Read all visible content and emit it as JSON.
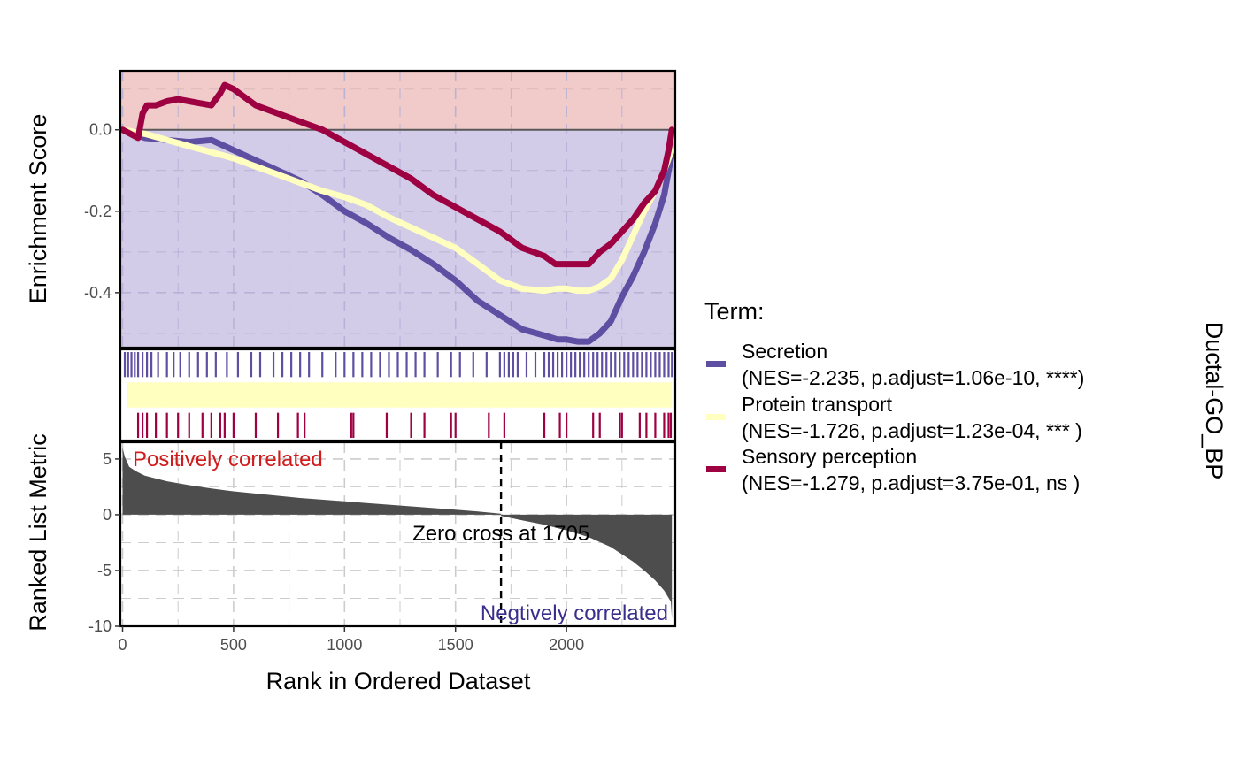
{
  "chart_data": {
    "type": "line",
    "facet_label": "Ductal-GO_BP",
    "legend": {
      "title": "Term:",
      "items": [
        {
          "name": "Secretion",
          "stats": "(NES=-2.235, p.adjust=1.06e-10, ****)",
          "color": "#5E4FA2"
        },
        {
          "name": "Protein transport",
          "stats": "(NES=-1.726, p.adjust=1.23e-04, *** )",
          "color": "#FFFFBF"
        },
        {
          "name": "Sensory perception",
          "stats": "(NES=-1.279, p.adjust=3.75e-01, ns  )",
          "color": "#9E0142"
        }
      ]
    },
    "xlabel": "Rank in Ordered Dataset",
    "xlim": [
      -10,
      2490
    ],
    "xticks": [
      0,
      500,
      1000,
      1500,
      2000
    ],
    "es_panel": {
      "ylabel": "Enrichment Score",
      "ylim": [
        -0.535,
        0.145
      ],
      "yticks": [
        0.0,
        -0.2,
        -0.4
      ],
      "ytick_labels": [
        "0.0",
        "-0.2",
        "-0.4"
      ],
      "positive_fill": "#F1CACA",
      "negative_fill": "#D3CCE9",
      "series": [
        {
          "name": "Secretion",
          "color": "#5E4FA2",
          "x": [
            0,
            100,
            200,
            300,
            400,
            500,
            600,
            700,
            800,
            900,
            1000,
            1100,
            1200,
            1300,
            1400,
            1500,
            1600,
            1700,
            1800,
            1900,
            1960,
            2000,
            2050,
            2100,
            2150,
            2200,
            2250,
            2300,
            2350,
            2400,
            2440,
            2460,
            2475
          ],
          "y": [
            0.0,
            -0.02,
            -0.025,
            -0.03,
            -0.025,
            -0.05,
            -0.075,
            -0.1,
            -0.125,
            -0.16,
            -0.2,
            -0.23,
            -0.265,
            -0.295,
            -0.33,
            -0.37,
            -0.42,
            -0.455,
            -0.49,
            -0.505,
            -0.515,
            -0.515,
            -0.52,
            -0.52,
            -0.5,
            -0.47,
            -0.41,
            -0.36,
            -0.3,
            -0.23,
            -0.16,
            -0.1,
            -0.06
          ]
        },
        {
          "name": "Protein transport",
          "color": "#FFFFBF",
          "x": [
            0,
            100,
            200,
            300,
            400,
            500,
            600,
            700,
            800,
            900,
            1000,
            1100,
            1200,
            1300,
            1400,
            1500,
            1600,
            1700,
            1800,
            1900,
            1960,
            2000,
            2050,
            2100,
            2150,
            2200,
            2250,
            2300,
            2350,
            2400,
            2440,
            2460,
            2475
          ],
          "y": [
            0.0,
            -0.01,
            -0.025,
            -0.04,
            -0.055,
            -0.07,
            -0.09,
            -0.11,
            -0.13,
            -0.15,
            -0.165,
            -0.185,
            -0.215,
            -0.24,
            -0.265,
            -0.29,
            -0.33,
            -0.37,
            -0.39,
            -0.395,
            -0.39,
            -0.39,
            -0.395,
            -0.395,
            -0.385,
            -0.365,
            -0.32,
            -0.26,
            -0.2,
            -0.15,
            -0.1,
            -0.07,
            -0.05
          ]
        },
        {
          "name": "Sensory perception",
          "color": "#9E0142",
          "x": [
            0,
            70,
            90,
            110,
            150,
            200,
            250,
            300,
            350,
            400,
            440,
            460,
            480,
            500,
            600,
            700,
            800,
            900,
            1000,
            1100,
            1200,
            1300,
            1400,
            1500,
            1600,
            1700,
            1800,
            1900,
            1950,
            2000,
            2050,
            2100,
            2150,
            2200,
            2250,
            2300,
            2350,
            2400,
            2440,
            2460,
            2475
          ],
          "y": [
            0.0,
            -0.02,
            0.04,
            0.06,
            0.06,
            0.07,
            0.075,
            0.07,
            0.065,
            0.06,
            0.09,
            0.11,
            0.105,
            0.1,
            0.06,
            0.04,
            0.02,
            0.0,
            -0.03,
            -0.06,
            -0.09,
            -0.12,
            -0.16,
            -0.19,
            -0.22,
            -0.25,
            -0.29,
            -0.31,
            -0.33,
            -0.33,
            -0.33,
            -0.33,
            -0.3,
            -0.28,
            -0.25,
            -0.22,
            -0.18,
            -0.15,
            -0.1,
            -0.05,
            0.0
          ]
        }
      ]
    },
    "hits_panel": {
      "rows": [
        {
          "name": "Secretion",
          "color": "#5E4FA2",
          "hits": [
            10,
            25,
            40,
            55,
            70,
            90,
            110,
            130,
            160,
            200,
            230,
            260,
            300,
            340,
            380,
            420,
            470,
            520,
            580,
            620,
            680,
            720,
            760,
            800,
            840,
            900,
            960,
            1000,
            1040,
            1080,
            1120,
            1160,
            1200,
            1240,
            1280,
            1320,
            1360,
            1420,
            1480,
            1520,
            1580,
            1640,
            1700,
            1720,
            1740,
            1760,
            1780,
            1820,
            1860,
            1900,
            1920,
            1940,
            1960,
            1980,
            2000,
            2020,
            2040,
            2060,
            2080,
            2100,
            2120,
            2140,
            2160,
            2180,
            2200,
            2220,
            2240,
            2260,
            2280,
            2300,
            2320,
            2340,
            2360,
            2380,
            2400,
            2420,
            2440,
            2460,
            2475
          ]
        },
        {
          "name": "Protein transport",
          "color": "#FFFFBF",
          "hits": [
            30,
            50,
            70,
            90,
            110,
            130,
            150,
            170,
            190,
            210,
            230,
            250,
            270,
            290,
            310,
            330,
            350,
            370,
            390,
            410,
            430,
            450,
            470,
            490,
            510,
            530,
            550,
            570,
            590,
            610,
            630,
            650,
            670,
            690,
            710,
            730,
            750,
            770,
            790,
            810,
            830,
            850,
            870,
            890,
            910,
            930,
            950,
            970,
            990,
            1010,
            1030,
            1050,
            1070,
            1090,
            1110,
            1130,
            1150,
            1170,
            1190,
            1210,
            1230,
            1250,
            1270,
            1290,
            1310,
            1330,
            1350,
            1370,
            1390,
            1410,
            1430,
            1450,
            1470,
            1490,
            1510,
            1530,
            1550,
            1570,
            1590,
            1610,
            1630,
            1650,
            1670,
            1690,
            1710,
            1730,
            1750,
            1770,
            1790,
            1810,
            1830,
            1850,
            1870,
            1890,
            1910,
            1930,
            1950,
            1970,
            1990,
            2010,
            2030,
            2050,
            2070,
            2090,
            2110,
            2130,
            2150,
            2170,
            2190,
            2210,
            2230,
            2250,
            2270,
            2290,
            2310,
            2330,
            2350,
            2370,
            2390,
            2410,
            2430,
            2450,
            2470
          ]
        },
        {
          "name": "Sensory perception",
          "color": "#9E0142",
          "hits": [
            70,
            90,
            110,
            150,
            200,
            250,
            300,
            360,
            400,
            440,
            460,
            500,
            600,
            700,
            790,
            820,
            1030,
            1040,
            1190,
            1300,
            1360,
            1480,
            1500,
            1650,
            1720,
            1900,
            1970,
            2000,
            2120,
            2150,
            2240,
            2250,
            2330,
            2360,
            2400,
            2440,
            2460,
            2470
          ]
        }
      ]
    },
    "metric_panel": {
      "ylabel": "Ranked List Metric",
      "ylim": [
        -10,
        6.5
      ],
      "yticks": [
        5,
        0,
        -5,
        -10
      ],
      "ytick_labels": [
        "5",
        "0",
        "-5",
        "-10"
      ],
      "bar_color": "#4D4D4D",
      "profile_x": [
        0,
        10,
        30,
        60,
        100,
        200,
        300,
        400,
        500,
        600,
        700,
        800,
        900,
        1000,
        1100,
        1200,
        1300,
        1400,
        1500,
        1600,
        1704,
        1705,
        1800,
        1900,
        2000,
        2100,
        2200,
        2300,
        2350,
        2400,
        2440,
        2470,
        2475
      ],
      "profile_y": [
        6.0,
        5.2,
        4.3,
        3.9,
        3.5,
        3.0,
        2.65,
        2.35,
        2.1,
        1.9,
        1.7,
        1.5,
        1.35,
        1.2,
        1.05,
        0.9,
        0.75,
        0.6,
        0.45,
        0.3,
        0.1,
        -0.1,
        -0.5,
        -0.9,
        -1.4,
        -2.0,
        -2.9,
        -4.2,
        -5.0,
        -5.9,
        -6.8,
        -7.8,
        -9.3
      ],
      "zero_cross": 1705,
      "zero_cross_label": "Zero cross at 1705",
      "positive_label": "Positively correlated",
      "positive_label_color": "#D01C1C",
      "negative_label": "Negtively correlated",
      "negative_label_color": "#3A2E8C"
    }
  }
}
